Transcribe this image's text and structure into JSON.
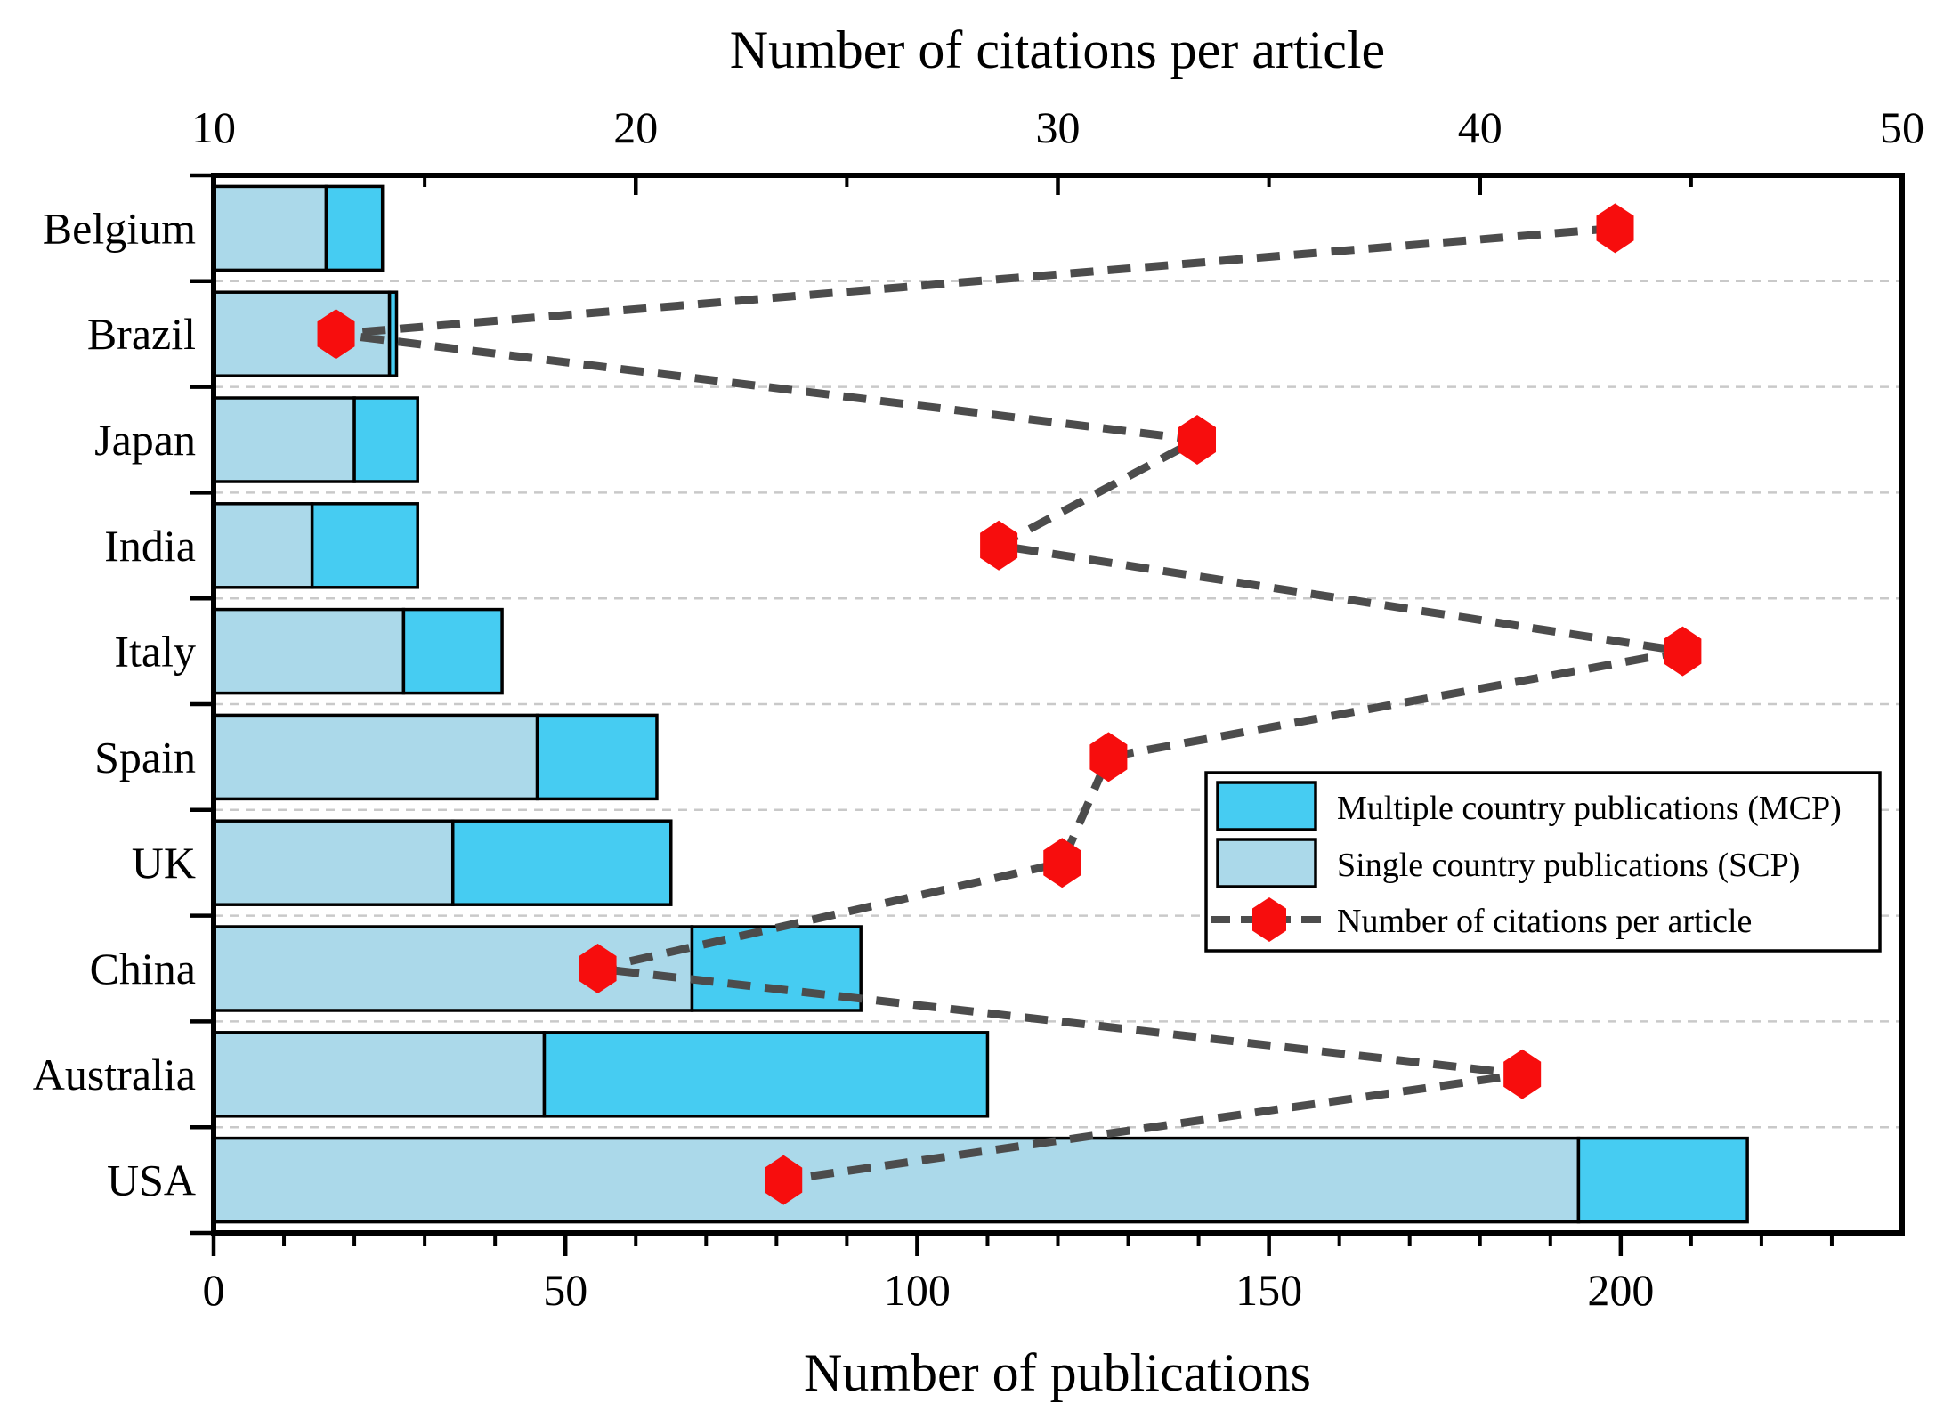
{
  "chart_data": {
    "type": "bar",
    "orientation": "horizontal",
    "stacked": true,
    "categories": [
      "Belgium",
      "Brazil",
      "Japan",
      "India",
      "Italy",
      "Spain",
      "UK",
      "China",
      "Australia",
      "USA"
    ],
    "series": [
      {
        "name": "Single country publications (SCP)",
        "key": "scp",
        "values": [
          16,
          25,
          20,
          14,
          27,
          46,
          34,
          68,
          47,
          194
        ]
      },
      {
        "name": "Multiple country publications (MCP)",
        "key": "mcp",
        "values": [
          8,
          1,
          9,
          15,
          14,
          17,
          31,
          24,
          63,
          24
        ]
      }
    ],
    "totals": [
      24,
      26,
      29,
      29,
      41,
      63,
      65,
      92,
      110,
      218
    ],
    "line_series": {
      "name": "Number of citations per article",
      "values": [
        43.2,
        12.9,
        33.3,
        28.6,
        44.8,
        31.2,
        30.1,
        19.1,
        41.0,
        23.5
      ],
      "marker": "hexagon",
      "style": "dashed"
    },
    "axes": {
      "bottom": {
        "label": "Number of publications",
        "min": 0,
        "max": 240,
        "major_ticks": [
          0,
          50,
          100,
          150,
          200
        ],
        "minor_step": 10
      },
      "top": {
        "label": "Number of citations per article",
        "min": 10,
        "max": 50,
        "major_ticks": [
          10,
          20,
          30,
          40,
          50
        ],
        "minor_step": 5
      }
    },
    "grid": {
      "horizontal_dashed_between_categories": true
    },
    "legend_position": "inside-right"
  },
  "legend": {
    "items": [
      {
        "swatch": "mcp",
        "label": "Multiple country publications (MCP)"
      },
      {
        "swatch": "scp",
        "label": "Single country publications (SCP)"
      },
      {
        "swatch": "line-marker",
        "label": "Number of citations per article"
      }
    ]
  },
  "colors": {
    "scp": "#abd9ea",
    "mcp": "#46ccf2",
    "marker_red": "#f70d0d",
    "line_gray": "#4c4c4c",
    "grid_gray": "#c9c9c9",
    "axis_black": "#000000",
    "background": "#ffffff"
  }
}
